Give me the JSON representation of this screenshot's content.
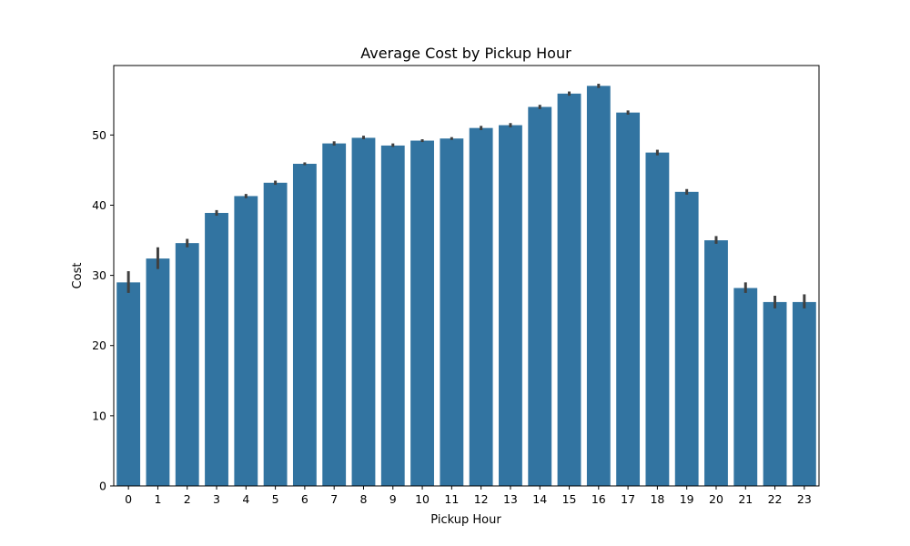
{
  "chart_data": {
    "type": "bar",
    "title": "Average Cost by Pickup Hour",
    "xlabel": "Pickup Hour",
    "ylabel": "Cost",
    "categories": [
      "0",
      "1",
      "2",
      "3",
      "4",
      "5",
      "6",
      "7",
      "8",
      "9",
      "10",
      "11",
      "12",
      "13",
      "14",
      "15",
      "16",
      "17",
      "18",
      "19",
      "20",
      "21",
      "22",
      "23"
    ],
    "values": [
      29.0,
      32.4,
      34.6,
      38.9,
      41.3,
      43.2,
      45.9,
      48.8,
      49.6,
      48.5,
      49.2,
      49.5,
      51.0,
      51.4,
      54.0,
      55.9,
      57.0,
      53.2,
      47.5,
      41.9,
      35.0,
      28.2,
      26.2,
      26.2
    ],
    "error": [
      [
        27.5,
        30.6
      ],
      [
        30.9,
        34.0
      ],
      [
        34.0,
        35.2
      ],
      [
        38.5,
        39.3
      ],
      [
        41.0,
        41.6
      ],
      [
        42.9,
        43.5
      ],
      [
        45.7,
        46.1
      ],
      [
        48.5,
        49.1
      ],
      [
        49.4,
        49.9
      ],
      [
        48.3,
        48.8
      ],
      [
        49.0,
        49.4
      ],
      [
        49.3,
        49.7
      ],
      [
        50.7,
        51.3
      ],
      [
        51.1,
        51.7
      ],
      [
        53.7,
        54.3
      ],
      [
        55.6,
        56.2
      ],
      [
        56.7,
        57.3
      ],
      [
        52.9,
        53.5
      ],
      [
        47.1,
        47.9
      ],
      [
        41.5,
        42.3
      ],
      [
        34.5,
        35.6
      ],
      [
        27.5,
        29.0
      ],
      [
        25.3,
        27.1
      ],
      [
        25.3,
        27.3
      ]
    ],
    "yticks": [
      0,
      10,
      20,
      30,
      40,
      50
    ],
    "ylim": [
      0,
      59.9
    ],
    "grid": false,
    "colors": {
      "bar": "#3274a1",
      "errorbar": "#404040"
    }
  }
}
